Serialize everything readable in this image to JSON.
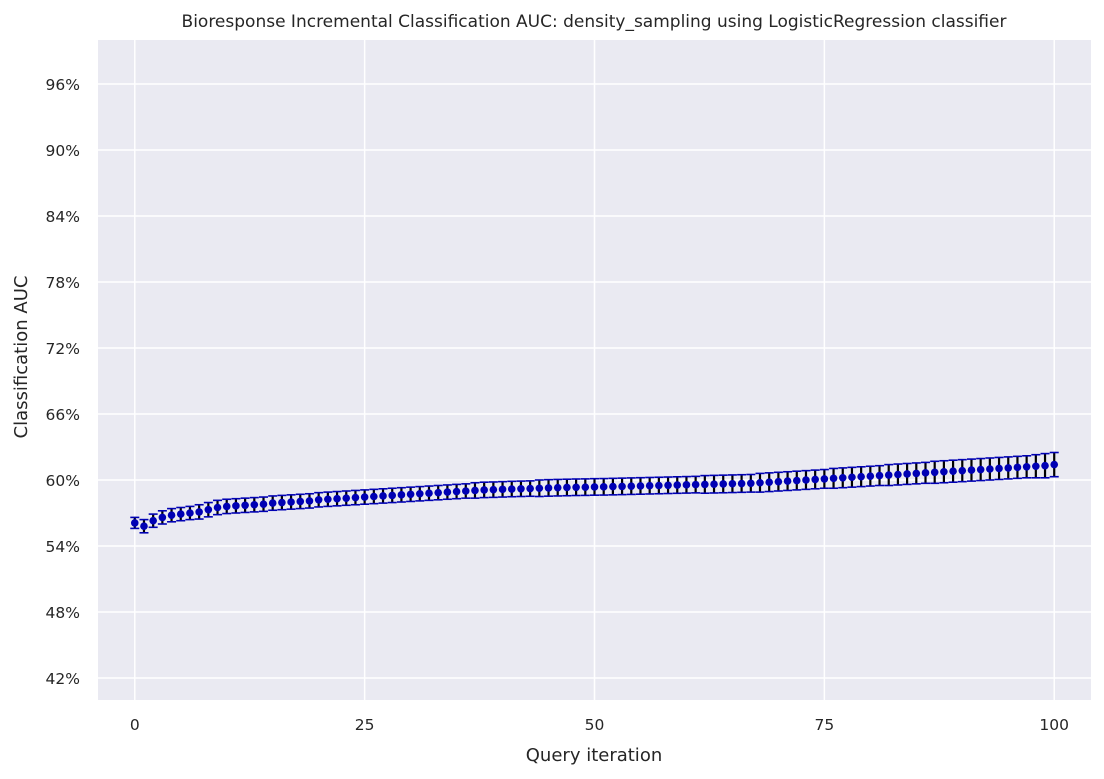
{
  "chart_data": {
    "type": "scatter",
    "title": "Bioresponse Incremental Classification AUC: density_sampling using LogisticRegression classifier",
    "xlabel": "Query iteration",
    "ylabel": "Classification AUC",
    "xlim": [
      -4,
      104
    ],
    "ylim": [
      0.4,
      1.0
    ],
    "x_ticks": [
      0,
      25,
      50,
      75,
      100
    ],
    "x_tick_labels": [
      "0",
      "25",
      "50",
      "75",
      "100"
    ],
    "y_ticks": [
      0.42,
      0.48,
      0.54,
      0.6,
      0.66,
      0.72,
      0.78,
      0.84,
      0.9,
      0.96
    ],
    "y_tick_labels": [
      "42%",
      "48%",
      "54%",
      "60%",
      "66%",
      "72%",
      "78%",
      "84%",
      "90%",
      "96%"
    ],
    "grid": true,
    "colors": {
      "background": "#eaeaf2",
      "grid": "#ffffff",
      "marker": "#0000b4",
      "errorbar": "#000000",
      "cap": "#0000b4"
    },
    "series": [
      {
        "x": [
          0,
          1,
          2,
          3,
          4,
          5,
          6,
          7,
          8,
          9,
          10,
          11,
          12,
          13,
          14,
          15,
          16,
          17,
          18,
          19,
          20,
          21,
          22,
          23,
          24,
          25,
          26,
          27,
          28,
          29,
          30,
          31,
          32,
          33,
          34,
          35,
          36,
          37,
          38,
          39,
          40,
          41,
          42,
          43,
          44,
          45,
          46,
          47,
          48,
          49,
          50,
          51,
          52,
          53,
          54,
          55,
          56,
          57,
          58,
          59,
          60,
          61,
          62,
          63,
          64,
          65,
          66,
          67,
          68,
          69,
          70,
          71,
          72,
          73,
          74,
          75,
          76,
          77,
          78,
          79,
          80,
          81,
          82,
          83,
          84,
          85,
          86,
          87,
          88,
          89,
          90,
          91,
          92,
          93,
          94,
          95,
          96,
          97,
          98,
          99,
          100
        ],
        "y": [
          0.561,
          0.558,
          0.563,
          0.566,
          0.568,
          0.569,
          0.57,
          0.571,
          0.573,
          0.575,
          0.576,
          0.5765,
          0.577,
          0.5775,
          0.578,
          0.579,
          0.5795,
          0.58,
          0.5805,
          0.581,
          0.582,
          0.5825,
          0.583,
          0.5835,
          0.584,
          0.5845,
          0.585,
          0.5855,
          0.586,
          0.5865,
          0.587,
          0.5875,
          0.588,
          0.5885,
          0.589,
          0.5895,
          0.59,
          0.5905,
          0.591,
          0.5912,
          0.5915,
          0.5918,
          0.592,
          0.5922,
          0.5925,
          0.5928,
          0.593,
          0.5932,
          0.5934,
          0.5935,
          0.5937,
          0.5938,
          0.594,
          0.5942,
          0.5944,
          0.5946,
          0.5948,
          0.595,
          0.5952,
          0.5954,
          0.5956,
          0.5958,
          0.596,
          0.5962,
          0.5964,
          0.5966,
          0.5968,
          0.597,
          0.5975,
          0.598,
          0.5985,
          0.599,
          0.5995,
          0.6,
          0.6005,
          0.601,
          0.6015,
          0.602,
          0.6025,
          0.603,
          0.6035,
          0.604,
          0.6045,
          0.605,
          0.6055,
          0.606,
          0.6065,
          0.607,
          0.6075,
          0.608,
          0.6085,
          0.609,
          0.6095,
          0.61,
          0.6105,
          0.611,
          0.6115,
          0.612,
          0.6125,
          0.613,
          0.614
        ],
        "err": [
          0.005,
          0.006,
          0.006,
          0.006,
          0.006,
          0.006,
          0.006,
          0.0065,
          0.0065,
          0.0065,
          0.0065,
          0.0065,
          0.0065,
          0.0065,
          0.0065,
          0.0065,
          0.0065,
          0.0065,
          0.0065,
          0.0065,
          0.0065,
          0.0065,
          0.0065,
          0.0065,
          0.0065,
          0.0065,
          0.0065,
          0.0065,
          0.0065,
          0.0065,
          0.0065,
          0.0065,
          0.0065,
          0.0065,
          0.0065,
          0.0065,
          0.0065,
          0.007,
          0.007,
          0.007,
          0.007,
          0.007,
          0.007,
          0.007,
          0.0075,
          0.0075,
          0.0075,
          0.0075,
          0.0075,
          0.0075,
          0.0075,
          0.0075,
          0.0075,
          0.0075,
          0.0075,
          0.0075,
          0.0075,
          0.0075,
          0.0075,
          0.0075,
          0.0075,
          0.0075,
          0.008,
          0.008,
          0.008,
          0.008,
          0.008,
          0.008,
          0.0085,
          0.0085,
          0.0085,
          0.0085,
          0.0085,
          0.0085,
          0.0085,
          0.0085,
          0.009,
          0.009,
          0.009,
          0.009,
          0.009,
          0.009,
          0.0095,
          0.0095,
          0.0095,
          0.0095,
          0.0095,
          0.01,
          0.01,
          0.01,
          0.01,
          0.01,
          0.01,
          0.01,
          0.01,
          0.01,
          0.01,
          0.01,
          0.0105,
          0.011,
          0.011
        ]
      }
    ]
  }
}
